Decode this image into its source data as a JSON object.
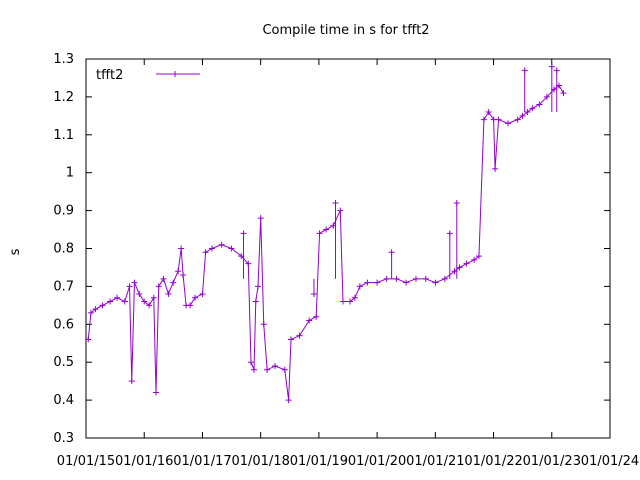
{
  "chart_data": {
    "type": "line",
    "title": "Compile time in s for tfft2",
    "xlabel": "",
    "ylabel": "s",
    "ylim": [
      0.3,
      1.3
    ],
    "xlim": [
      "2015-01-01",
      "2024-01-01"
    ],
    "yticks": [
      "0.3",
      "0.4",
      "0.5",
      "0.6",
      "0.7",
      "0.8",
      "0.9",
      "1",
      "1.1",
      "1.2",
      "1.3"
    ],
    "xticks": [
      "01/01/15",
      "01/01/16",
      "01/01/17",
      "01/01/18",
      "01/01/19",
      "01/01/20",
      "01/01/21",
      "01/01/22",
      "01/01/23",
      "01/01/24"
    ],
    "grid": false,
    "legend": "top-left",
    "series": [
      {
        "name": "tfft2",
        "color": "#9400d3",
        "points": [
          [
            "2015-01-15",
            0.56
          ],
          [
            "2015-02-01",
            0.63
          ],
          [
            "2015-03-01",
            0.64
          ],
          [
            "2015-04-15",
            0.65
          ],
          [
            "2015-06-01",
            0.66
          ],
          [
            "2015-07-15",
            0.67
          ],
          [
            "2015-09-01",
            0.66
          ],
          [
            "2015-10-01",
            0.7
          ],
          [
            "2015-10-15",
            0.45
          ],
          [
            "2015-11-01",
            0.71
          ],
          [
            "2015-12-01",
            0.68
          ],
          [
            "2016-01-01",
            0.66
          ],
          [
            "2016-02-01",
            0.65
          ],
          [
            "2016-03-01",
            0.67
          ],
          [
            "2016-03-15",
            0.42
          ],
          [
            "2016-04-01",
            0.7
          ],
          [
            "2016-05-01",
            0.72
          ],
          [
            "2016-06-01",
            0.68
          ],
          [
            "2016-07-01",
            0.71
          ],
          [
            "2016-08-01",
            0.74
          ],
          [
            "2016-08-20",
            0.8
          ],
          [
            "2016-09-01",
            0.73
          ],
          [
            "2016-09-20",
            0.65
          ],
          [
            "2016-10-15",
            0.65
          ],
          [
            "2016-11-15",
            0.67
          ],
          [
            "2017-01-01",
            0.68
          ],
          [
            "2017-01-20",
            0.79
          ],
          [
            "2017-03-01",
            0.8
          ],
          [
            "2017-05-01",
            0.81
          ],
          [
            "2017-07-01",
            0.8
          ],
          [
            "2017-09-01",
            0.78
          ],
          [
            "2017-10-15",
            0.76
          ],
          [
            "2017-11-01",
            0.5
          ],
          [
            "2017-11-20",
            0.48
          ],
          [
            "2017-12-01",
            0.66
          ],
          [
            "2017-12-15",
            0.7
          ],
          [
            "2018-01-01",
            0.88
          ],
          [
            "2018-01-20",
            0.6
          ],
          [
            "2018-02-10",
            0.48
          ],
          [
            "2018-04-01",
            0.49
          ],
          [
            "2018-06-01",
            0.48
          ],
          [
            "2018-06-25",
            0.4
          ],
          [
            "2018-07-10",
            0.56
          ],
          [
            "2018-09-01",
            0.57
          ],
          [
            "2018-11-01",
            0.61
          ],
          [
            "2018-12-15",
            0.62
          ],
          [
            "2019-01-05",
            0.84
          ],
          [
            "2019-02-15",
            0.85
          ],
          [
            "2019-04-01",
            0.86
          ],
          [
            "2019-05-15",
            0.9
          ],
          [
            "2019-06-01",
            0.66
          ],
          [
            "2019-07-15",
            0.66
          ],
          [
            "2019-08-15",
            0.67
          ],
          [
            "2019-09-15",
            0.7
          ],
          [
            "2019-11-01",
            0.71
          ],
          [
            "2020-01-01",
            0.71
          ],
          [
            "2020-03-01",
            0.72
          ],
          [
            "2020-05-01",
            0.72
          ],
          [
            "2020-07-01",
            0.71
          ],
          [
            "2020-09-01",
            0.72
          ],
          [
            "2020-11-01",
            0.72
          ],
          [
            "2021-01-01",
            0.71
          ],
          [
            "2021-03-01",
            0.72
          ],
          [
            "2021-05-01",
            0.74
          ],
          [
            "2021-06-01",
            0.75
          ],
          [
            "2021-07-15",
            0.76
          ],
          [
            "2021-09-01",
            0.77
          ],
          [
            "2021-10-01",
            0.78
          ],
          [
            "2021-11-01",
            1.14
          ],
          [
            "2021-12-01",
            1.16
          ],
          [
            "2022-01-01",
            1.14
          ],
          [
            "2022-01-10",
            1.01
          ],
          [
            "2022-02-01",
            1.14
          ],
          [
            "2022-04-01",
            1.13
          ],
          [
            "2022-06-01",
            1.14
          ],
          [
            "2022-07-01",
            1.15
          ],
          [
            "2022-08-01",
            1.16
          ],
          [
            "2022-09-01",
            1.17
          ],
          [
            "2022-10-15",
            1.18
          ],
          [
            "2022-12-01",
            1.2
          ],
          [
            "2023-01-15",
            1.22
          ],
          [
            "2023-02-15",
            1.23
          ],
          [
            "2023-03-15",
            1.21
          ]
        ],
        "spikes": [
          [
            "2021-04-01",
            0.84
          ],
          [
            "2021-05-15",
            0.92
          ],
          [
            "2022-07-15",
            1.27
          ],
          [
            "2023-01-01",
            1.28
          ],
          [
            "2023-02-01",
            1.27
          ],
          [
            "2020-04-01",
            0.79
          ],
          [
            "2018-12-01",
            0.68
          ],
          [
            "2019-04-15",
            0.92
          ],
          [
            "2017-09-15",
            0.84
          ]
        ]
      }
    ]
  }
}
